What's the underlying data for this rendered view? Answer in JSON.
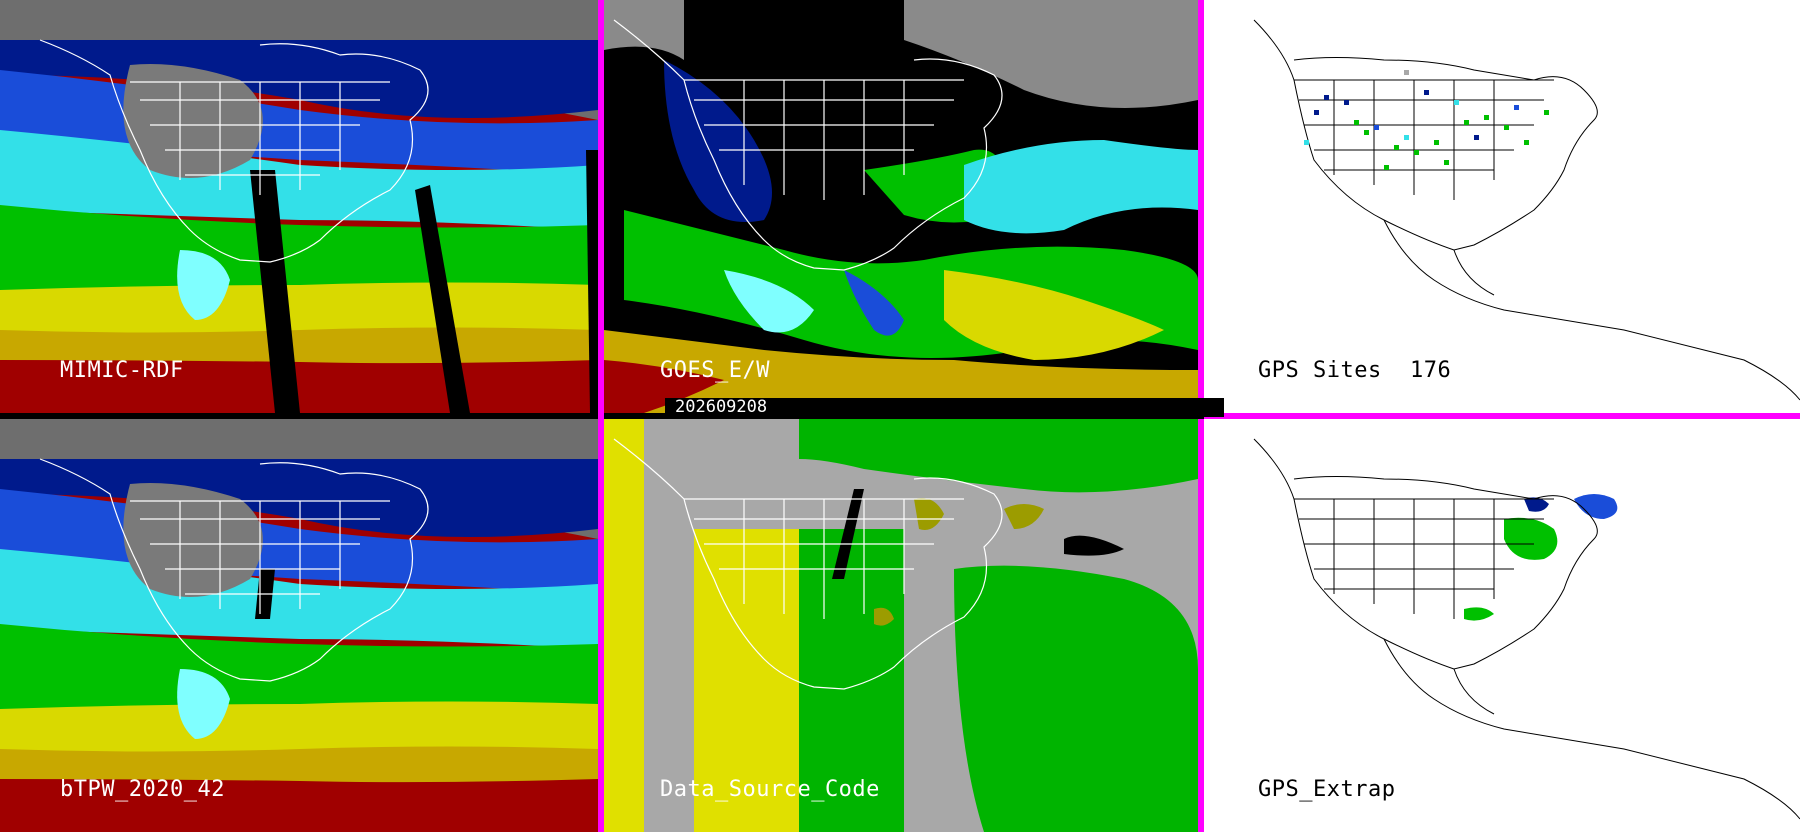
{
  "date": "202609208",
  "panels": {
    "mimic": {
      "label": "MIMIC-RDF"
    },
    "goes": {
      "label": "GOES_E/W"
    },
    "gps_sites": {
      "label": "GPS Sites",
      "count": "176"
    },
    "btpw": {
      "label": "bTPW_2020_42"
    },
    "source": {
      "label": "Data_Source_Code"
    },
    "gps_extrap": {
      "label": "GPS_Extrap"
    }
  },
  "colors": {
    "divider": "#ff00ff",
    "tpw_scale": [
      "#808080",
      "#001a8c",
      "#1a4dd9",
      "#33e0e8",
      "#7fffff",
      "#00c000",
      "#5fd000",
      "#d9d900",
      "#c8a800",
      "#e02020",
      "#a00000"
    ],
    "source_gps": "#9c9c00",
    "source_polar": "#e0e000",
    "source_geo": "#00b400",
    "source_none": "#a8a8a8"
  }
}
